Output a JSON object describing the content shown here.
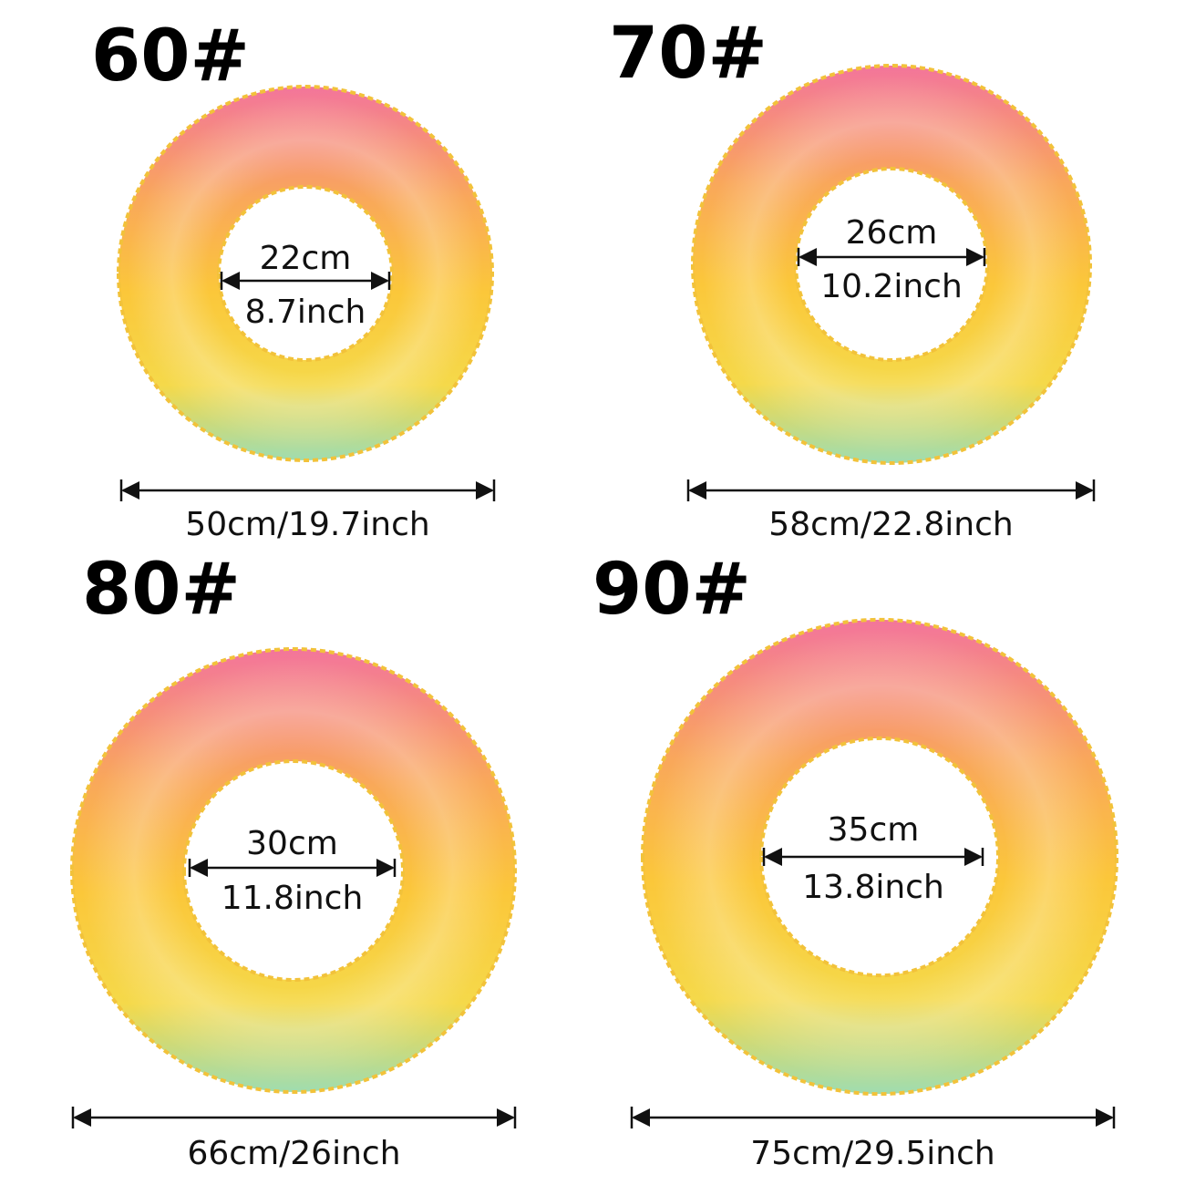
{
  "items": [
    {
      "size": "60#",
      "inner_cm": "22cm",
      "inner_inch": "8.7inch",
      "outer": "50cm/19.7inch"
    },
    {
      "size": "70#",
      "inner_cm": "26cm",
      "inner_inch": "10.2inch",
      "outer": "58cm/22.8inch"
    },
    {
      "size": "80#",
      "inner_cm": "30cm",
      "inner_inch": "11.8inch",
      "outer": "66cm/26inch"
    },
    {
      "size": "90#",
      "inner_cm": "35cm",
      "inner_inch": "13.8inch",
      "outer": "75cm/29.5inch"
    }
  ]
}
